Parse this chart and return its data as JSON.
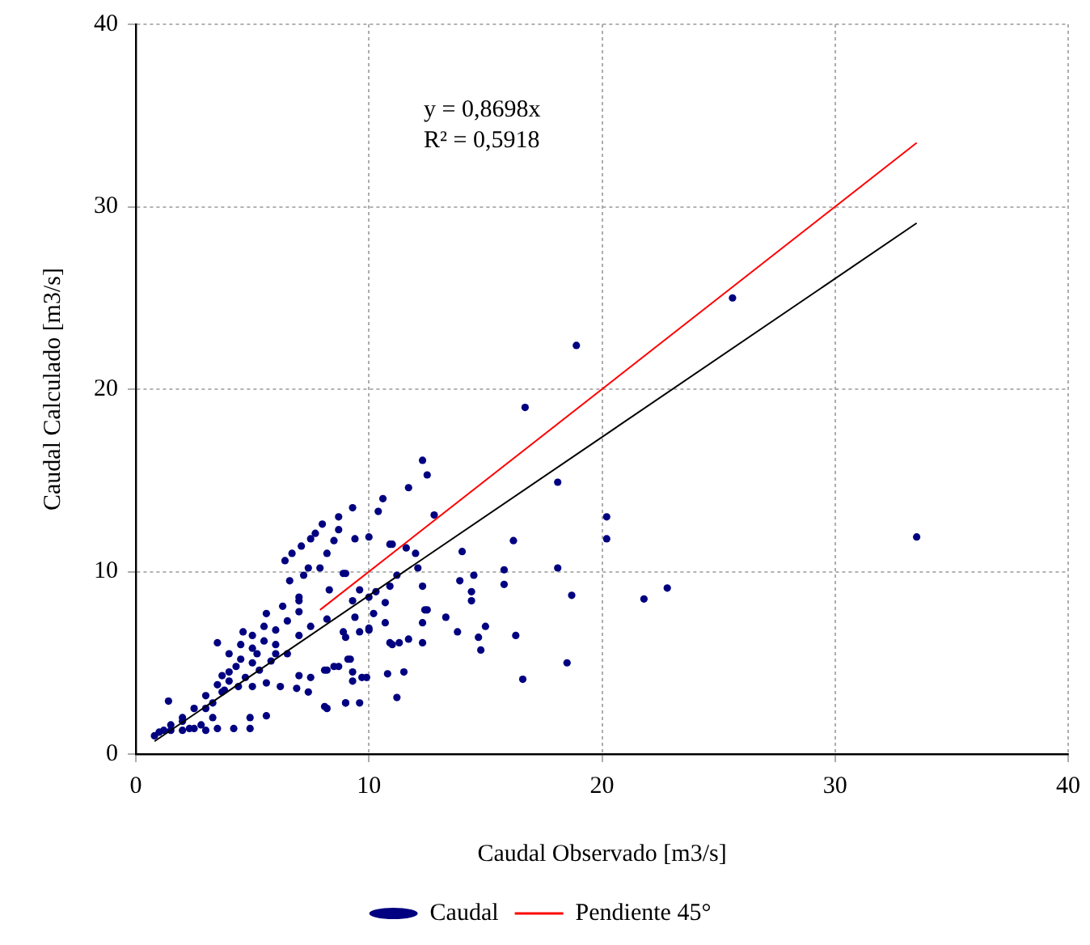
{
  "chart_data": {
    "type": "scatter",
    "xlabel": "Caudal Observado [m3/s]",
    "ylabel": "Caudal Calculado [m3/s]",
    "annotations": [
      "y = 0,8698x",
      "R² = 0,5918"
    ],
    "xlim": [
      0,
      40
    ],
    "xticks": [
      0,
      10,
      20,
      30,
      40
    ],
    "ylim": [
      0,
      40
    ],
    "yticks": [
      0,
      10,
      20,
      30,
      40
    ],
    "grid": true,
    "legend": "bottom",
    "series": [
      {
        "name": "Caudal",
        "marker": "circle",
        "color": "#000080",
        "x": [
          33.5,
          25.6,
          18.9,
          16.7,
          12.3,
          12.5,
          11.7,
          10.6,
          10.4,
          9.3,
          12.8,
          18.1,
          20.2,
          20.2,
          16.2,
          14.0,
          12.0,
          11.0,
          10.0,
          18.1,
          15.8,
          14.5,
          18.7,
          21.8,
          22.8,
          13.9,
          14.4,
          14.4,
          15.8,
          13.3,
          13.8,
          15.0,
          14.7,
          14.8,
          16.3,
          18.5,
          16.6,
          12.3,
          11.7,
          11.0,
          10.8,
          11.5,
          11.2,
          12.3,
          12.4,
          12.3,
          12.1,
          11.6,
          11.2,
          10.7,
          10.7,
          10.2,
          10.0,
          9.9,
          9.3,
          9.0,
          8.2,
          9.1,
          8.2,
          8.7,
          8.9,
          8.3,
          8.5,
          8.7,
          8.2,
          8.0,
          9.3,
          9.6,
          10.3,
          9.4,
          9.0,
          9.6,
          8.7,
          7.7,
          7.5,
          7.1,
          6.7,
          6.4,
          6.6,
          7.4,
          7.9,
          10.9,
          9.4,
          7.2,
          7.0,
          9.0,
          10.0,
          10.9,
          11.3,
          12.5,
          10.9,
          10.0,
          8.9,
          8.2,
          9.2,
          9.3,
          9.7,
          8.5,
          8.1,
          7.5,
          6.9,
          6.2,
          5.6,
          5.0,
          4.4,
          3.7,
          3.3,
          7.4,
          8.1,
          9.0,
          9.6,
          4.9,
          5.6,
          4.2,
          4.9,
          3.3,
          2.8,
          2.3,
          1.4,
          1.2,
          0.8,
          1.0,
          1.5,
          2.0,
          2.5,
          3.0,
          3.5,
          4.0,
          4.5,
          5.0,
          5.5,
          6.0,
          6.5,
          7.0,
          3.5,
          4.6,
          5.6,
          6.3,
          7.0,
          3.7,
          5.3,
          6.5,
          7.0,
          1.5,
          2.0,
          2.5,
          3.0,
          3.5,
          4.0,
          4.5,
          5.0,
          5.5,
          4.0,
          5.0,
          6.0,
          3.0,
          2.0,
          6.0,
          7.0,
          7.5,
          4.3,
          5.2,
          3.8,
          4.7,
          5.8
        ],
        "values": [
          11.9,
          25.0,
          22.4,
          19.0,
          16.1,
          15.3,
          14.6,
          14.0,
          13.3,
          13.5,
          13.1,
          14.9,
          13.0,
          11.8,
          11.7,
          11.1,
          11.0,
          11.5,
          11.9,
          10.2,
          10.1,
          9.8,
          8.7,
          8.5,
          9.1,
          9.5,
          8.9,
          8.4,
          9.3,
          7.5,
          6.7,
          7.0,
          6.4,
          5.7,
          6.5,
          5.0,
          4.1,
          6.1,
          6.3,
          6.0,
          4.4,
          4.5,
          3.1,
          7.2,
          7.9,
          9.2,
          10.2,
          11.3,
          9.8,
          8.3,
          7.2,
          7.7,
          6.9,
          4.2,
          4.0,
          2.8,
          2.5,
          5.2,
          4.6,
          4.8,
          9.9,
          9.0,
          11.7,
          12.3,
          11.0,
          12.6,
          8.4,
          9.0,
          8.9,
          7.5,
          6.4,
          6.7,
          13.0,
          12.1,
          11.8,
          11.4,
          11.0,
          10.6,
          9.5,
          10.2,
          10.2,
          11.5,
          11.8,
          9.8,
          8.4,
          9.9,
          8.6,
          9.2,
          6.1,
          7.9,
          6.1,
          6.8,
          6.7,
          7.4,
          5.2,
          4.5,
          4.2,
          4.8,
          4.6,
          4.2,
          3.6,
          3.7,
          3.9,
          3.7,
          3.7,
          3.4,
          2.8,
          3.4,
          2.6,
          2.8,
          2.8,
          2.0,
          2.1,
          1.4,
          1.4,
          2.0,
          1.6,
          1.4,
          2.9,
          1.3,
          1.0,
          1.2,
          1.6,
          2.0,
          2.5,
          3.2,
          3.8,
          4.5,
          5.2,
          5.8,
          6.2,
          6.8,
          7.3,
          7.8,
          6.1,
          6.7,
          7.7,
          8.1,
          8.6,
          4.3,
          4.6,
          5.5,
          4.3,
          1.3,
          1.3,
          1.4,
          1.3,
          1.4,
          5.5,
          6.0,
          6.5,
          7.0,
          4.0,
          5.0,
          6.0,
          2.5,
          1.8,
          5.5,
          6.5,
          7.0,
          4.8,
          5.5,
          3.5,
          4.2,
          5.1
        ]
      },
      {
        "name": "Pendiente 45°",
        "type": "line",
        "marker": "none",
        "color": "#ff0000",
        "x": [
          7.9,
          33.5
        ],
        "values": [
          7.9,
          33.5
        ]
      },
      {
        "type": "line",
        "marker": "none",
        "color": "#000000",
        "x": [
          0.8,
          33.5
        ],
        "values": [
          0.7,
          29.1
        ]
      }
    ]
  }
}
